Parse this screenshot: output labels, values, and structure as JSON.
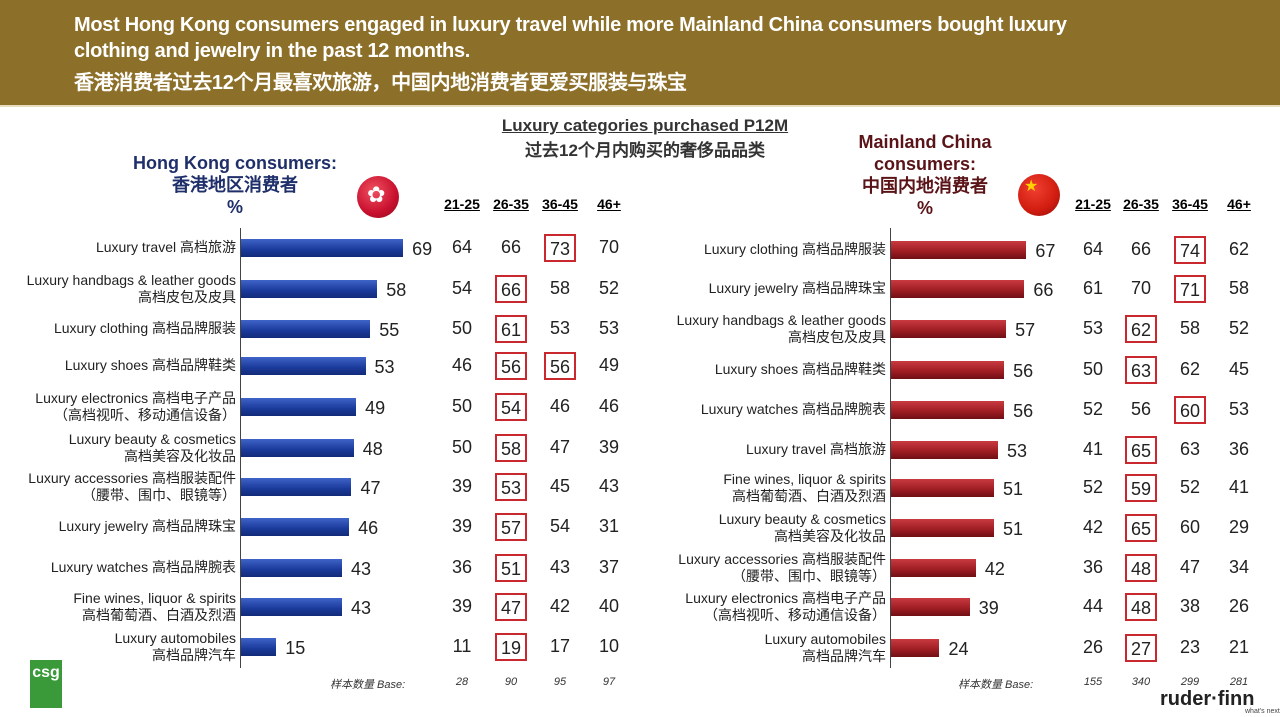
{
  "header": {
    "line1": "Most Hong Kong consumers engaged in luxury travel while more Mainland China consumers bought luxury",
    "line2": "clothing and jewelry in the past 12 months.",
    "line3": "香港消费者过去12个月最喜欢旅游，中国内地消费者更爱买服装与珠宝"
  },
  "center_title": {
    "en": "Luxury categories purchased P12M",
    "zh": "过去12个月内购买的奢侈品品类"
  },
  "colors": {
    "header_bg": "#8c6f28",
    "hk_bar": "#1f3fa0",
    "cn_bar": "#9c1c22",
    "highlight": "#c8282e"
  },
  "chart_data": [
    {
      "type": "bar",
      "orientation": "horizontal",
      "title": "Hong Kong consumers:",
      "title_zh": "香港地区消费者",
      "unit": "%",
      "age_groups": [
        "21-25",
        "26-35",
        "36-45",
        "46+"
      ],
      "base_label": "样本数量 Base:",
      "base": [
        "28",
        "90",
        "95",
        "97"
      ],
      "categories": [
        {
          "en": "Luxury travel 高档旅游",
          "zh": "",
          "total": 69,
          "ages": [
            64,
            66,
            73,
            70
          ],
          "hl": [
            2
          ]
        },
        {
          "en": "Luxury handbags & leather goods",
          "zh": "高档皮包及皮具",
          "total": 58,
          "ages": [
            54,
            66,
            58,
            52
          ],
          "hl": [
            1
          ]
        },
        {
          "en": "Luxury clothing 高档品牌服装",
          "zh": "",
          "total": 55,
          "ages": [
            50,
            61,
            53,
            53
          ],
          "hl": [
            1
          ]
        },
        {
          "en": "Luxury shoes 高档品牌鞋类",
          "zh": "",
          "total": 53,
          "ages": [
            46,
            56,
            56,
            49
          ],
          "hl": [
            1,
            2
          ]
        },
        {
          "en": "Luxury electronics 高档电子产品",
          "zh": "（高档视听、移动通信设备）",
          "total": 49,
          "ages": [
            50,
            54,
            46,
            46
          ],
          "hl": [
            1
          ]
        },
        {
          "en": "Luxury beauty & cosmetics",
          "zh": "高档美容及化妆品",
          "total": 48,
          "ages": [
            50,
            58,
            47,
            39
          ],
          "hl": [
            1
          ]
        },
        {
          "en": "Luxury accessories 高档服装配件",
          "zh": "（腰带、围巾、眼镜等）",
          "total": 47,
          "ages": [
            39,
            53,
            45,
            43
          ],
          "hl": [
            1
          ]
        },
        {
          "en": "Luxury jewelry 高档品牌珠宝",
          "zh": "",
          "total": 46,
          "ages": [
            39,
            57,
            54,
            31
          ],
          "hl": [
            1
          ]
        },
        {
          "en": "Luxury watches 高档品牌腕表",
          "zh": "",
          "total": 43,
          "ages": [
            36,
            51,
            43,
            37
          ],
          "hl": [
            1
          ]
        },
        {
          "en": "Fine wines, liquor & spirits",
          "zh": "高档葡萄酒、白酒及烈酒",
          "total": 43,
          "ages": [
            39,
            47,
            42,
            40
          ],
          "hl": [
            1
          ]
        },
        {
          "en": "Luxury automobiles",
          "zh": "高档品牌汽车",
          "total": 15,
          "ages": [
            11,
            19,
            17,
            10
          ],
          "hl": [
            1
          ]
        }
      ]
    },
    {
      "type": "bar",
      "orientation": "horizontal",
      "title": "Mainland China consumers:",
      "title_zh": "中国内地消费者",
      "unit": "%",
      "age_groups": [
        "21-25",
        "26-35",
        "36-45",
        "46+"
      ],
      "base_label": "样本数量 Base:",
      "base": [
        "155",
        "340",
        "299",
        "281"
      ],
      "categories": [
        {
          "en": "Luxury clothing 高档品牌服装",
          "zh": "",
          "total": 67,
          "ages": [
            64,
            66,
            74,
            62
          ],
          "hl": [
            2
          ]
        },
        {
          "en": "Luxury jewelry 高档品牌珠宝",
          "zh": "",
          "total": 66,
          "ages": [
            61,
            70,
            71,
            58
          ],
          "hl": [
            2
          ]
        },
        {
          "en": "Luxury handbags & leather goods",
          "zh": "高档皮包及皮具",
          "total": 57,
          "ages": [
            53,
            62,
            58,
            52
          ],
          "hl": [
            1
          ]
        },
        {
          "en": "Luxury shoes 高档品牌鞋类",
          "zh": "",
          "total": 56,
          "ages": [
            50,
            63,
            62,
            45
          ],
          "hl": [
            1
          ]
        },
        {
          "en": "Luxury watches 高档品牌腕表",
          "zh": "",
          "total": 56,
          "ages": [
            52,
            56,
            60,
            53
          ],
          "hl": [
            2
          ]
        },
        {
          "en": "Luxury travel 高档旅游",
          "zh": "",
          "total": 53,
          "ages": [
            41,
            65,
            63,
            36
          ],
          "hl": [
            1
          ]
        },
        {
          "en": "Fine wines, liquor & spirits",
          "zh": "高档葡萄酒、白酒及烈酒",
          "total": 51,
          "ages": [
            52,
            59,
            52,
            41
          ],
          "hl": [
            1
          ]
        },
        {
          "en": "Luxury beauty & cosmetics",
          "zh": "高档美容及化妆品",
          "total": 51,
          "ages": [
            42,
            65,
            60,
            29
          ],
          "hl": [
            1
          ]
        },
        {
          "en": "Luxury accessories 高档服装配件",
          "zh": "（腰带、围巾、眼镜等）",
          "total": 42,
          "ages": [
            36,
            48,
            47,
            34
          ],
          "hl": [
            1
          ]
        },
        {
          "en": "Luxury electronics 高档电子产品",
          "zh": "（高档视听、移动通信设备）",
          "total": 39,
          "ages": [
            44,
            48,
            38,
            26
          ],
          "hl": [
            1
          ]
        },
        {
          "en": "Luxury automobiles",
          "zh": "高档品牌汽车",
          "total": 24,
          "ages": [
            26,
            27,
            23,
            21
          ],
          "hl": [
            1
          ]
        }
      ]
    }
  ],
  "logos": {
    "left": "csg",
    "right": "ruder·finn",
    "right_tag": "what's next"
  }
}
